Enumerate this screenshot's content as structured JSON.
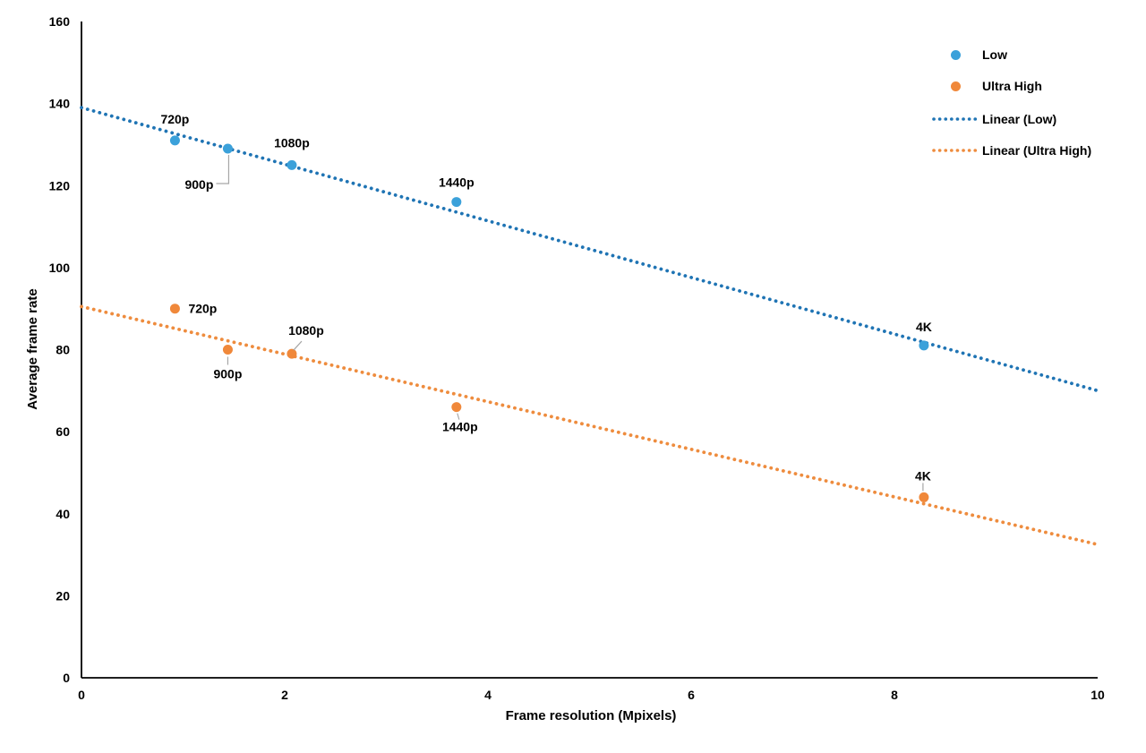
{
  "chart_data": {
    "type": "scatter",
    "title": "",
    "xlabel": "Frame resolution (Mpixels)",
    "ylabel": "Average frame rate",
    "xlim": [
      0,
      10
    ],
    "ylim": [
      0,
      160
    ],
    "x_ticks": [
      "0",
      "2",
      "4",
      "6",
      "8",
      "10"
    ],
    "x_tick_values": [
      0,
      2,
      4,
      6,
      8,
      10
    ],
    "y_ticks": [
      "0",
      "20",
      "40",
      "60",
      "80",
      "100",
      "120",
      "140",
      "160"
    ],
    "y_tick_values": [
      0,
      20,
      40,
      60,
      80,
      100,
      120,
      140,
      160
    ],
    "grid": false,
    "legend_position": "top-right",
    "axis_color": "#000000",
    "label_color": "#000000",
    "leader_color": "#a6a6a6",
    "series": [
      {
        "name": "Low",
        "marker_color": "#3ba1da",
        "trend_color": "#1f74b4",
        "trend_name": "Linear (Low)",
        "trend_endpoints": {
          "x": [
            0,
            10
          ],
          "y": [
            139,
            70
          ]
        },
        "points": [
          {
            "x": 0.92,
            "y": 131,
            "label": "720p",
            "dx": 0,
            "dy": -24
          },
          {
            "x": 1.44,
            "y": 129,
            "label": "900p",
            "dx": -32,
            "dy": 40,
            "leader": [
              [
                -13,
                39
              ],
              [
                1,
                39
              ],
              [
                1,
                7
              ]
            ]
          },
          {
            "x": 2.07,
            "y": 125,
            "label": "1080p",
            "dx": 0,
            "dy": -25
          },
          {
            "x": 3.69,
            "y": 116,
            "label": "1440p",
            "dx": 0,
            "dy": -22
          },
          {
            "x": 8.29,
            "y": 81,
            "label": "4K",
            "dx": 0,
            "dy": -21
          }
        ]
      },
      {
        "name": "Ultra High",
        "marker_color": "#f0883a",
        "trend_color": "#ee8c3e",
        "trend_name": "Linear (Ultra High)",
        "trend_endpoints": {
          "x": [
            0,
            10
          ],
          "y": [
            90.5,
            32.5
          ]
        },
        "points": [
          {
            "x": 0.92,
            "y": 90,
            "label": "720p",
            "dx": 31,
            "dy": 0
          },
          {
            "x": 1.44,
            "y": 80,
            "label": "900p",
            "dx": 0,
            "dy": 27,
            "leader": [
              [
                0,
                8
              ],
              [
                0,
                17
              ]
            ]
          },
          {
            "x": 2.07,
            "y": 79,
            "label": "1080p",
            "dx": 16,
            "dy": -26,
            "leader": [
              [
                11,
                -14
              ],
              [
                2,
                -4
              ]
            ]
          },
          {
            "x": 3.69,
            "y": 66,
            "label": "1440p",
            "dx": 4,
            "dy": 22,
            "leader": [
              [
                1,
                7
              ],
              [
                3,
                14
              ]
            ]
          },
          {
            "x": 8.29,
            "y": 44,
            "label": "4K",
            "dx": -1,
            "dy": -24,
            "leader": [
              [
                -1,
                -16
              ],
              [
                -1,
                -7
              ]
            ]
          }
        ]
      }
    ],
    "legend": [
      {
        "label": "Low",
        "type": "marker",
        "series": 0
      },
      {
        "label": "Ultra High",
        "type": "marker",
        "series": 1
      },
      {
        "label": "Linear (Low)",
        "type": "line",
        "series": 0
      },
      {
        "label": "Linear (Ultra High)",
        "type": "line",
        "series": 1
      }
    ]
  }
}
